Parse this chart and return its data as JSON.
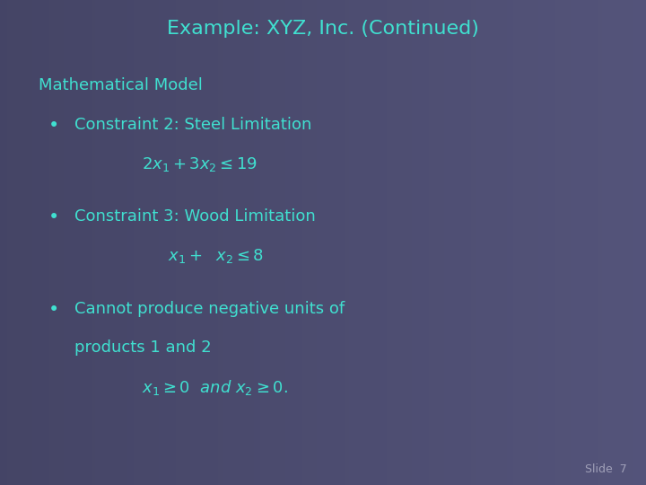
{
  "title": "Example: XYZ, Inc. (Continued)",
  "title_color": "#40E0D0",
  "title_fontsize": 16,
  "bg_color_left": "#4a4a6a",
  "bg_color_right": "#5a5a80",
  "bg_color_center": "#50507a",
  "text_color": "#40E0D0",
  "slide_label": "Slide  7",
  "slide_label_color": "#a0a0b8",
  "slide_label_fontsize": 9,
  "section_header": "Mathematical Model",
  "section_header_fontsize": 13,
  "bullet_fontsize": 13,
  "formula_fontsize": 13
}
